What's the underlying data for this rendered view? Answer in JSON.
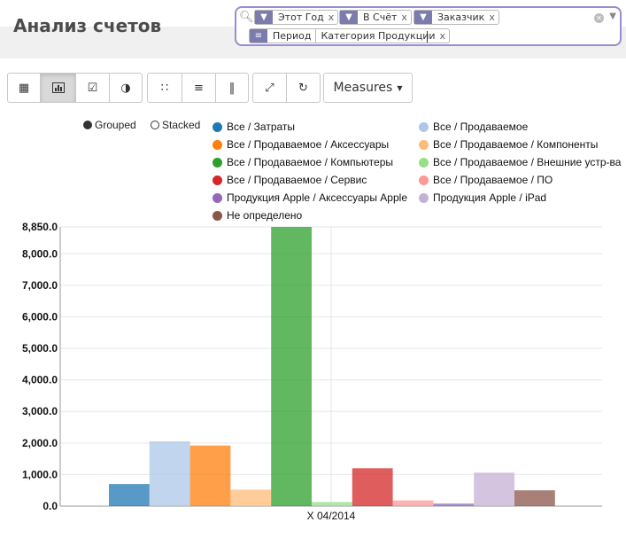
{
  "page": {
    "title": "Анализ счетов"
  },
  "search": {
    "facets_row1": [
      {
        "label": "Этот Год",
        "remove": "x"
      },
      {
        "label": "В Счёт",
        "remove": "x"
      },
      {
        "label": "Заказчик",
        "remove": "x"
      }
    ],
    "groupby_facet": {
      "parts": [
        "Период",
        "Категория Продукции"
      ],
      "remove": "x"
    }
  },
  "toolbar": {
    "views": [
      "table-icon",
      "bar-chart-icon",
      "checkbox-icon",
      "contrast-icon"
    ],
    "layout": [
      "grid-icon",
      "list-icon",
      "columns-icon"
    ],
    "actions": [
      "expand-icon",
      "refresh-icon"
    ],
    "measures_label": "Measures"
  },
  "chart_modes": {
    "grouped": "Grouped",
    "stacked": "Stacked",
    "selected": "grouped"
  },
  "chart_data": {
    "type": "bar",
    "categories": [
      "X 04/2014"
    ],
    "ylim": [
      0,
      8850
    ],
    "ytick_labels": [
      "0.0",
      "1,000.0",
      "2,000.0",
      "3,000.0",
      "4,000.0",
      "5,000.0",
      "6,000.0",
      "7,000.0",
      "8,000.0",
      "8,850.0"
    ],
    "yticks": [
      0,
      1000,
      2000,
      3000,
      4000,
      5000,
      6000,
      7000,
      8000,
      8850
    ],
    "grid": true,
    "legend_position": "top",
    "series": [
      {
        "name": "Все / Затраты",
        "color": "#1f77b4",
        "values": [
          700
        ]
      },
      {
        "name": "Все / Продаваемое",
        "color": "#aec7e8",
        "values": [
          2050
        ]
      },
      {
        "name": "Все / Продаваемое / Аксессуары",
        "color": "#ff7f0e",
        "values": [
          1920
        ]
      },
      {
        "name": "Все / Продаваемое / Компоненты",
        "color": "#ffbb78",
        "values": [
          520
        ]
      },
      {
        "name": "Все / Продаваемое / Компьютеры",
        "color": "#2ca02c",
        "values": [
          8850
        ]
      },
      {
        "name": "Все / Продаваемое / Внешние устр-ва",
        "color": "#98df8a",
        "values": [
          130
        ]
      },
      {
        "name": "Все / Продаваемое / Сервис",
        "color": "#d62728",
        "values": [
          1200
        ]
      },
      {
        "name": "Все / Продаваемое / ПО",
        "color": "#ff9896",
        "values": [
          180
        ]
      },
      {
        "name": "Продукция Apple / Аксессуары Apple",
        "color": "#9467bd",
        "values": [
          80
        ]
      },
      {
        "name": "Продукция Apple / iPad",
        "color": "#c5b0d5",
        "values": [
          1060
        ]
      },
      {
        "name": "Не определено",
        "color": "#8c564b",
        "values": [
          500
        ]
      }
    ]
  }
}
